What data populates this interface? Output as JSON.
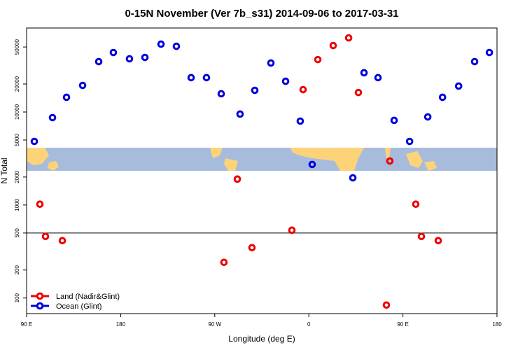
{
  "chart_data": {
    "type": "scatter",
    "title": "0-15N November (Ver 7b_s31)   2014-09-06 to 2017-03-31",
    "x_label": "Longitude (deg E)",
    "y_label": "N Total",
    "xlim": [
      90,
      540
    ],
    "ylim": [
      68,
      80000
    ],
    "ylog": true,
    "xticks": [
      {
        "value": 90,
        "label": "90 E"
      },
      {
        "value": 180,
        "label": "180"
      },
      {
        "value": 270,
        "label": "90 W"
      },
      {
        "value": 360,
        "label": "0"
      },
      {
        "value": 450,
        "label": "90 E"
      },
      {
        "value": 540,
        "label": "180"
      }
    ],
    "yticks": [
      100,
      200,
      500,
      1000,
      2000,
      5000,
      10000,
      20000,
      50000
    ],
    "hline": 500,
    "legend": "bottom-left",
    "series": [
      {
        "name": "Land (Nadir&Glint)",
        "color": "#ee0000",
        "x": [
          102.7,
          108.1,
          124.2,
          278.8,
          291.6,
          305.6,
          343.8,
          354.5,
          368.6,
          383.3,
          398.1,
          407.4,
          434.2,
          437.5,
          462.3,
          467.7,
          483.8
        ],
        "values": [
          1020,
          459,
          414,
          242,
          1900,
          348,
          536,
          17400,
          36600,
          51800,
          62600,
          16200,
          84,
          2970,
          1020,
          459,
          414
        ]
      },
      {
        "name": "Ocean (Glint)",
        "color": "#0000dd",
        "x": [
          97.4,
          114.8,
          128.2,
          143.6,
          159,
          173,
          188.4,
          203.2,
          218.6,
          233.3,
          247.4,
          262.1,
          276.2,
          294.2,
          308.3,
          323.7,
          337.8,
          351.8,
          363.2,
          402.1,
          412.8,
          426.2,
          441.6,
          456.4,
          473.8,
          487.9,
          503.3,
          518.6,
          532.7
        ],
        "values": [
          4830,
          8700,
          14400,
          19300,
          34800,
          43600,
          37300,
          38600,
          53600,
          50900,
          23400,
          23400,
          15700,
          9500,
          17100,
          33600,
          21400,
          7980,
          2730,
          1960,
          26400,
          23400,
          8130,
          4830,
          8850,
          14400,
          19000,
          34800,
          43600
        ]
      }
    ]
  }
}
